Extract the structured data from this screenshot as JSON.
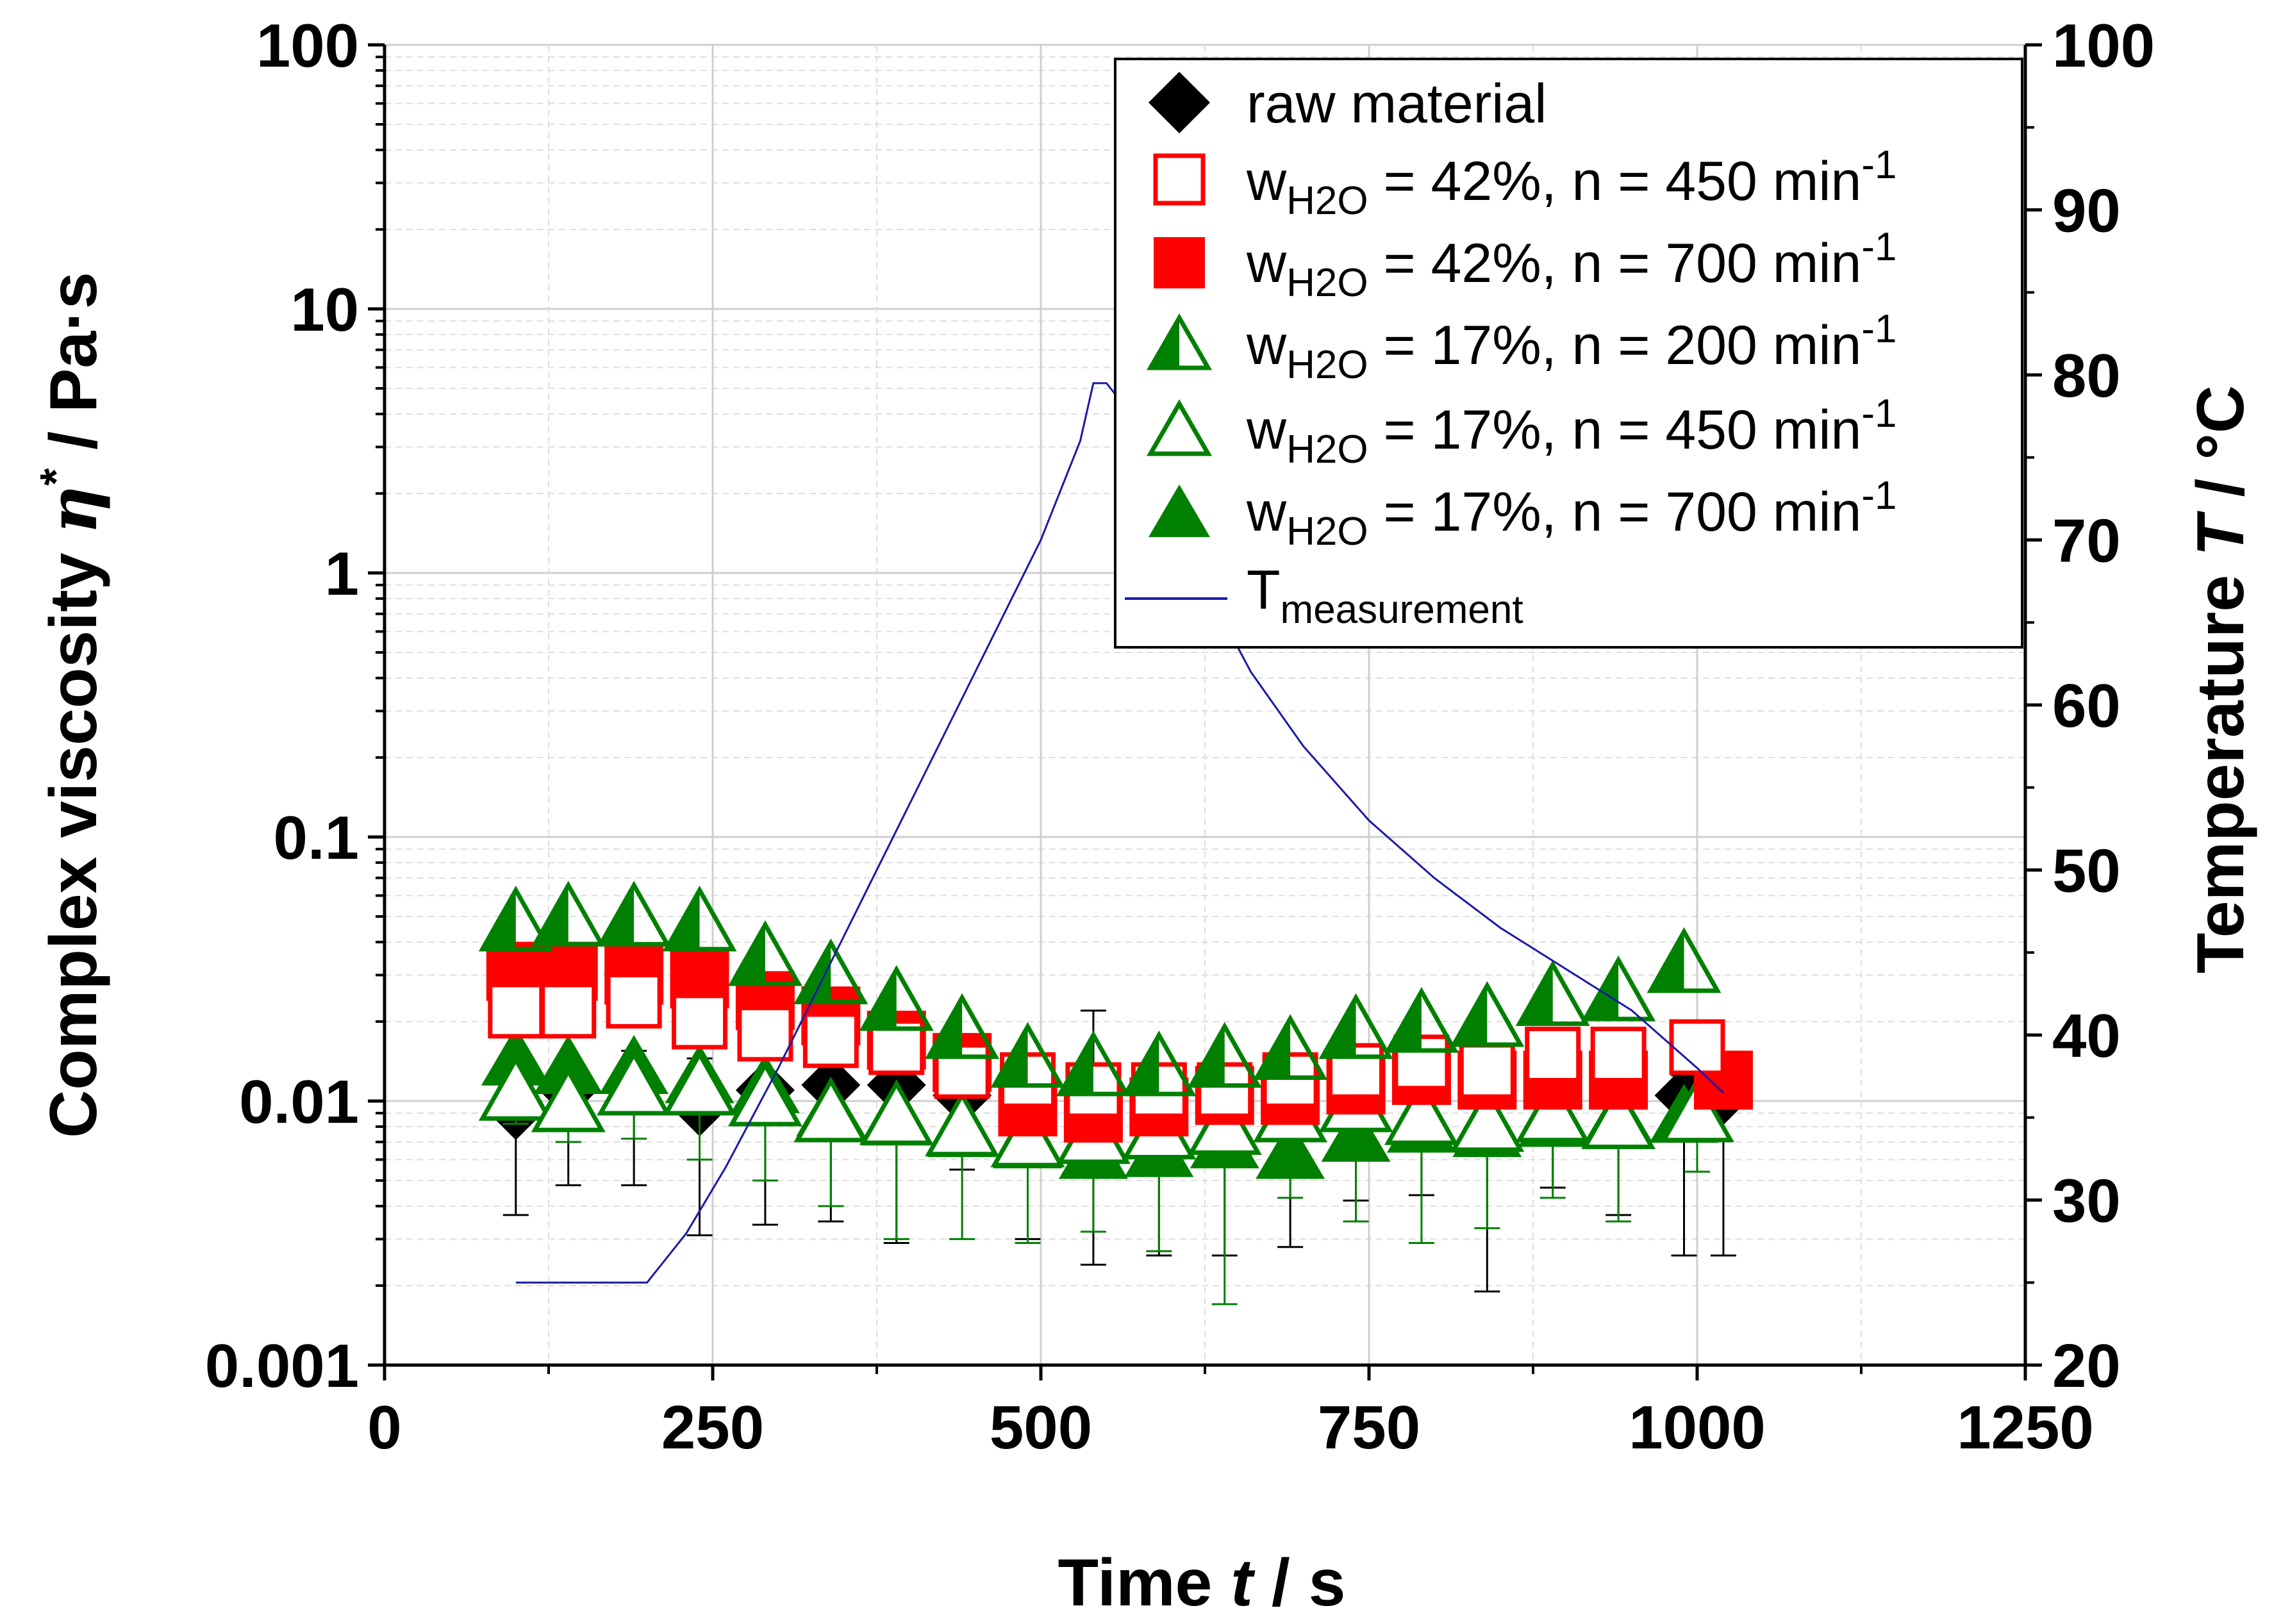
{
  "chart_data": {
    "type": "scatter",
    "title": "",
    "xlabel": "Time t / s",
    "ylabel": "Complex viscosity η* / Pa·s",
    "y2label": "Temperature T / °C",
    "xlim": [
      0,
      1250
    ],
    "ylim": [
      0.001,
      100
    ],
    "yscale": "log",
    "y2lim": [
      20,
      100
    ],
    "xticks": [
      "0",
      "250",
      "500",
      "750",
      "1000",
      "1250"
    ],
    "yticks": [
      "0.001",
      "0.01",
      "0.1",
      "1",
      "10",
      "100"
    ],
    "y2ticks": [
      "20",
      "30",
      "40",
      "50",
      "60",
      "70",
      "80",
      "90",
      "100"
    ],
    "grid": true,
    "legend_position": "top-right",
    "series": [
      {
        "name": "raw material",
        "marker": "diamond",
        "fill": "solid",
        "color": "#000000",
        "x": [
          100,
          140,
          190,
          240,
          290,
          340,
          390,
          440,
          490,
          540,
          590,
          640,
          690,
          740,
          790,
          840,
          890,
          940,
          990,
          1020
        ],
        "y": [
          0.0092,
          0.011,
          0.0115,
          0.0095,
          0.011,
          0.0115,
          0.0115,
          0.0105,
          0.0105,
          0.0095,
          0.01,
          0.01,
          0.0105,
          0.0105,
          0.011,
          0.0115,
          0.0115,
          0.0115,
          0.0105,
          0.0105
        ],
        "y_low": [
          0.0037,
          0.0048,
          0.0048,
          0.0031,
          0.0034,
          0.0035,
          0.0029,
          0.0055,
          0.003,
          0.0024,
          0.0026,
          0.0026,
          0.0028,
          0.0042,
          0.0044,
          0.0019,
          0.0047,
          0.0037,
          0.0026,
          0.0026
        ],
        "y_high": [
          0.0125,
          0.0145,
          0.0155,
          0.0145,
          0.0145,
          0.0155,
          0.0135,
          0.0125,
          0.0135,
          0.022,
          0.0135,
          0.0135,
          0.0145,
          0.0145,
          0.0135,
          0.0125,
          0.0135,
          0.0135,
          0.0125,
          0.0125
        ]
      },
      {
        "name": "wH2O = 42%, n = 450 min-1",
        "marker": "square",
        "fill": "open",
        "color": "#ff0000",
        "x": [
          100,
          140,
          190,
          240,
          290,
          340,
          390,
          440,
          490,
          540,
          590,
          640,
          690,
          740,
          790,
          840,
          890,
          940,
          1000
        ],
        "y": [
          0.022,
          0.022,
          0.024,
          0.02,
          0.018,
          0.017,
          0.016,
          0.013,
          0.012,
          0.011,
          0.011,
          0.011,
          0.012,
          0.013,
          0.014,
          0.013,
          0.015,
          0.015,
          0.016
        ]
      },
      {
        "name": "wH2O = 42%, n = 700 min-1",
        "marker": "square",
        "fill": "solid",
        "color": "#ff0000",
        "x": [
          100,
          140,
          190,
          240,
          290,
          340,
          390,
          440,
          490,
          540,
          590,
          640,
          690,
          740,
          790,
          840,
          890,
          940,
          1020
        ],
        "y": [
          0.031,
          0.031,
          0.03,
          0.029,
          0.024,
          0.021,
          0.017,
          0.014,
          0.0095,
          0.009,
          0.0095,
          0.0105,
          0.0105,
          0.0115,
          0.0125,
          0.012,
          0.012,
          0.012,
          0.012
        ]
      },
      {
        "name": "wH2O = 17%, n = 200 min-1",
        "marker": "triangle",
        "fill": "half",
        "color": "#008000",
        "x": [
          100,
          140,
          190,
          240,
          290,
          340,
          390,
          440,
          490,
          540,
          590,
          640,
          690,
          740,
          790,
          840,
          890,
          940,
          990
        ],
        "y": [
          0.046,
          0.048,
          0.048,
          0.046,
          0.034,
          0.029,
          0.023,
          0.018,
          0.014,
          0.013,
          0.013,
          0.014,
          0.015,
          0.018,
          0.019,
          0.02,
          0.024,
          0.025,
          0.032
        ]
      },
      {
        "name": "wH2O = 17%, n = 450 min-1",
        "marker": "triangle",
        "fill": "open",
        "color": "#008000",
        "x": [
          100,
          140,
          190,
          240,
          290,
          340,
          390,
          440,
          490,
          540,
          590,
          640,
          690,
          740,
          790,
          840,
          890,
          940,
          1000
        ],
        "y": [
          0.0105,
          0.0095,
          0.011,
          0.011,
          0.01,
          0.0087,
          0.0085,
          0.0077,
          0.007,
          0.0072,
          0.0075,
          0.0078,
          0.0087,
          0.0095,
          0.0085,
          0.008,
          0.0087,
          0.0082,
          0.0087
        ],
        "y_low": [
          0.0082,
          0.007,
          0.0072,
          0.006,
          0.005,
          0.004,
          0.003,
          0.003,
          0.0029,
          0.0032,
          0.0027,
          0.0017,
          0.0043,
          0.0035,
          0.0029,
          0.0033,
          0.0043,
          0.0035,
          0.0054
        ]
      },
      {
        "name": "wH2O = 17%, n = 700 min-1",
        "marker": "triangle",
        "fill": "solid",
        "color": "#008000",
        "x": [
          100,
          140,
          190,
          240,
          290,
          340,
          390,
          440,
          490,
          540,
          590,
          640,
          690,
          740,
          790,
          840,
          890,
          940,
          990
        ],
        "y": [
          0.014,
          0.013,
          0.013,
          0.012,
          0.011,
          0.009,
          0.0083,
          0.0075,
          0.0068,
          0.0062,
          0.0063,
          0.0068,
          0.0062,
          0.0072,
          0.0078,
          0.0075,
          0.0082,
          0.0085,
          0.0085
        ]
      },
      {
        "name": "Tmeasurement",
        "marker": "none",
        "line": true,
        "axis": "right",
        "color": "#1a1aa6",
        "x": [
          100,
          200,
          210,
          230,
          260,
          300,
          350,
          400,
          450,
          500,
          530,
          540,
          550,
          560,
          580,
          620,
          660,
          700,
          750,
          800,
          850,
          900,
          950,
          1000,
          1020
        ],
        "y": [
          25,
          25,
          26,
          28,
          32,
          38,
          46,
          54,
          62,
          70,
          76,
          79.5,
          79.5,
          78.5,
          74.5,
          68,
          62,
          57.5,
          53,
          49.5,
          46.5,
          44,
          41.5,
          38,
          36.5
        ]
      }
    ]
  },
  "legend": {
    "items": [
      {
        "prefix": "raw material",
        "sub": "",
        "suffix": "",
        "sup": ""
      },
      {
        "prefix": "w",
        "sub": "H2O",
        "suffix": " = 42%, n = 450 min",
        "sup": "-1"
      },
      {
        "prefix": "w",
        "sub": "H2O",
        "suffix": " = 42%, n = 700 min",
        "sup": "-1"
      },
      {
        "prefix": "w",
        "sub": "H2O",
        "suffix": " = 17%, n = 200 min",
        "sup": "-1"
      },
      {
        "prefix": "w",
        "sub": "H2O",
        "suffix": " = 17%, n = 450 min",
        "sup": "-1"
      },
      {
        "prefix": "w",
        "sub": "H2O",
        "suffix": " = 17%, n = 700 min",
        "sup": "-1"
      },
      {
        "prefix": "T",
        "sub": "measurement",
        "suffix": "",
        "sup": ""
      }
    ]
  },
  "axis_titles": {
    "x_main": "Time ",
    "x_var": "t",
    "x_unit": " / s",
    "y_main": "Complex viscosity ",
    "y_var": "η",
    "y_sup": "*",
    "y_unit": " / Pa·s",
    "y2_main": "Temperature ",
    "y2_var": "T",
    "y2_unit": " / °C"
  }
}
